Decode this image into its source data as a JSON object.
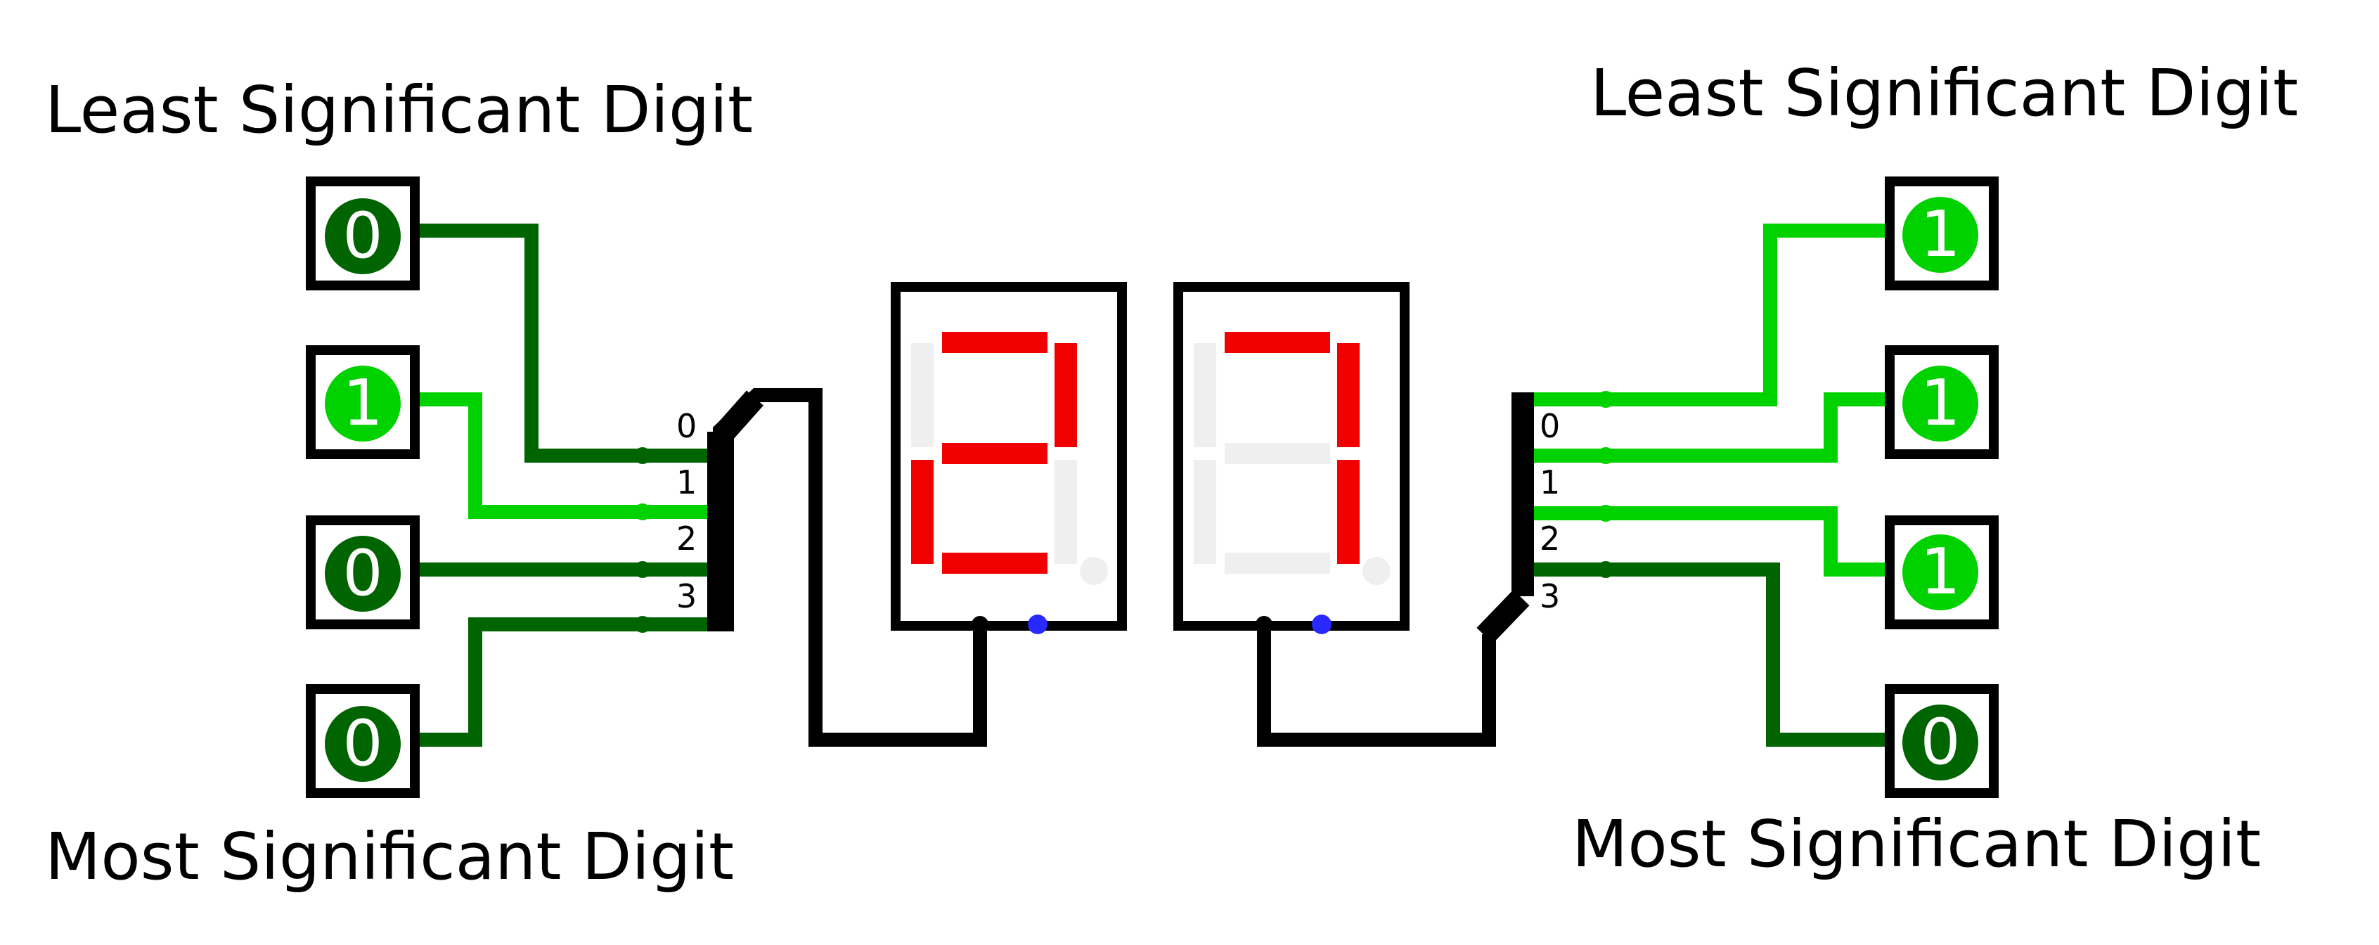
{
  "captions": {
    "left_top": "Least Significant Digit",
    "left_bottom": "Most Significant Digit",
    "right_top": "Least Significant Digit",
    "right_bottom": "Most Significant Digit"
  },
  "left_inputs": [
    "0",
    "1",
    "0",
    "0"
  ],
  "right_inputs": [
    "1",
    "1",
    "1",
    "0"
  ],
  "pin_labels": [
    "0",
    "1",
    "2",
    "3"
  ],
  "colors": {
    "wire_off": "#006400",
    "wire_on": "#00d200",
    "segment_on": "#f00000",
    "segment_off": "#efefef",
    "outline": "#000000",
    "clock_dot": "#2828ff"
  },
  "displays": [
    {
      "value": "2",
      "segments": {
        "a": true,
        "b": true,
        "c": false,
        "d": true,
        "e": true,
        "f": false,
        "g": true,
        "dp": false
      }
    },
    {
      "value": "7",
      "segments": {
        "a": true,
        "b": true,
        "c": true,
        "d": false,
        "e": false,
        "f": false,
        "g": false,
        "dp": false
      }
    }
  ]
}
